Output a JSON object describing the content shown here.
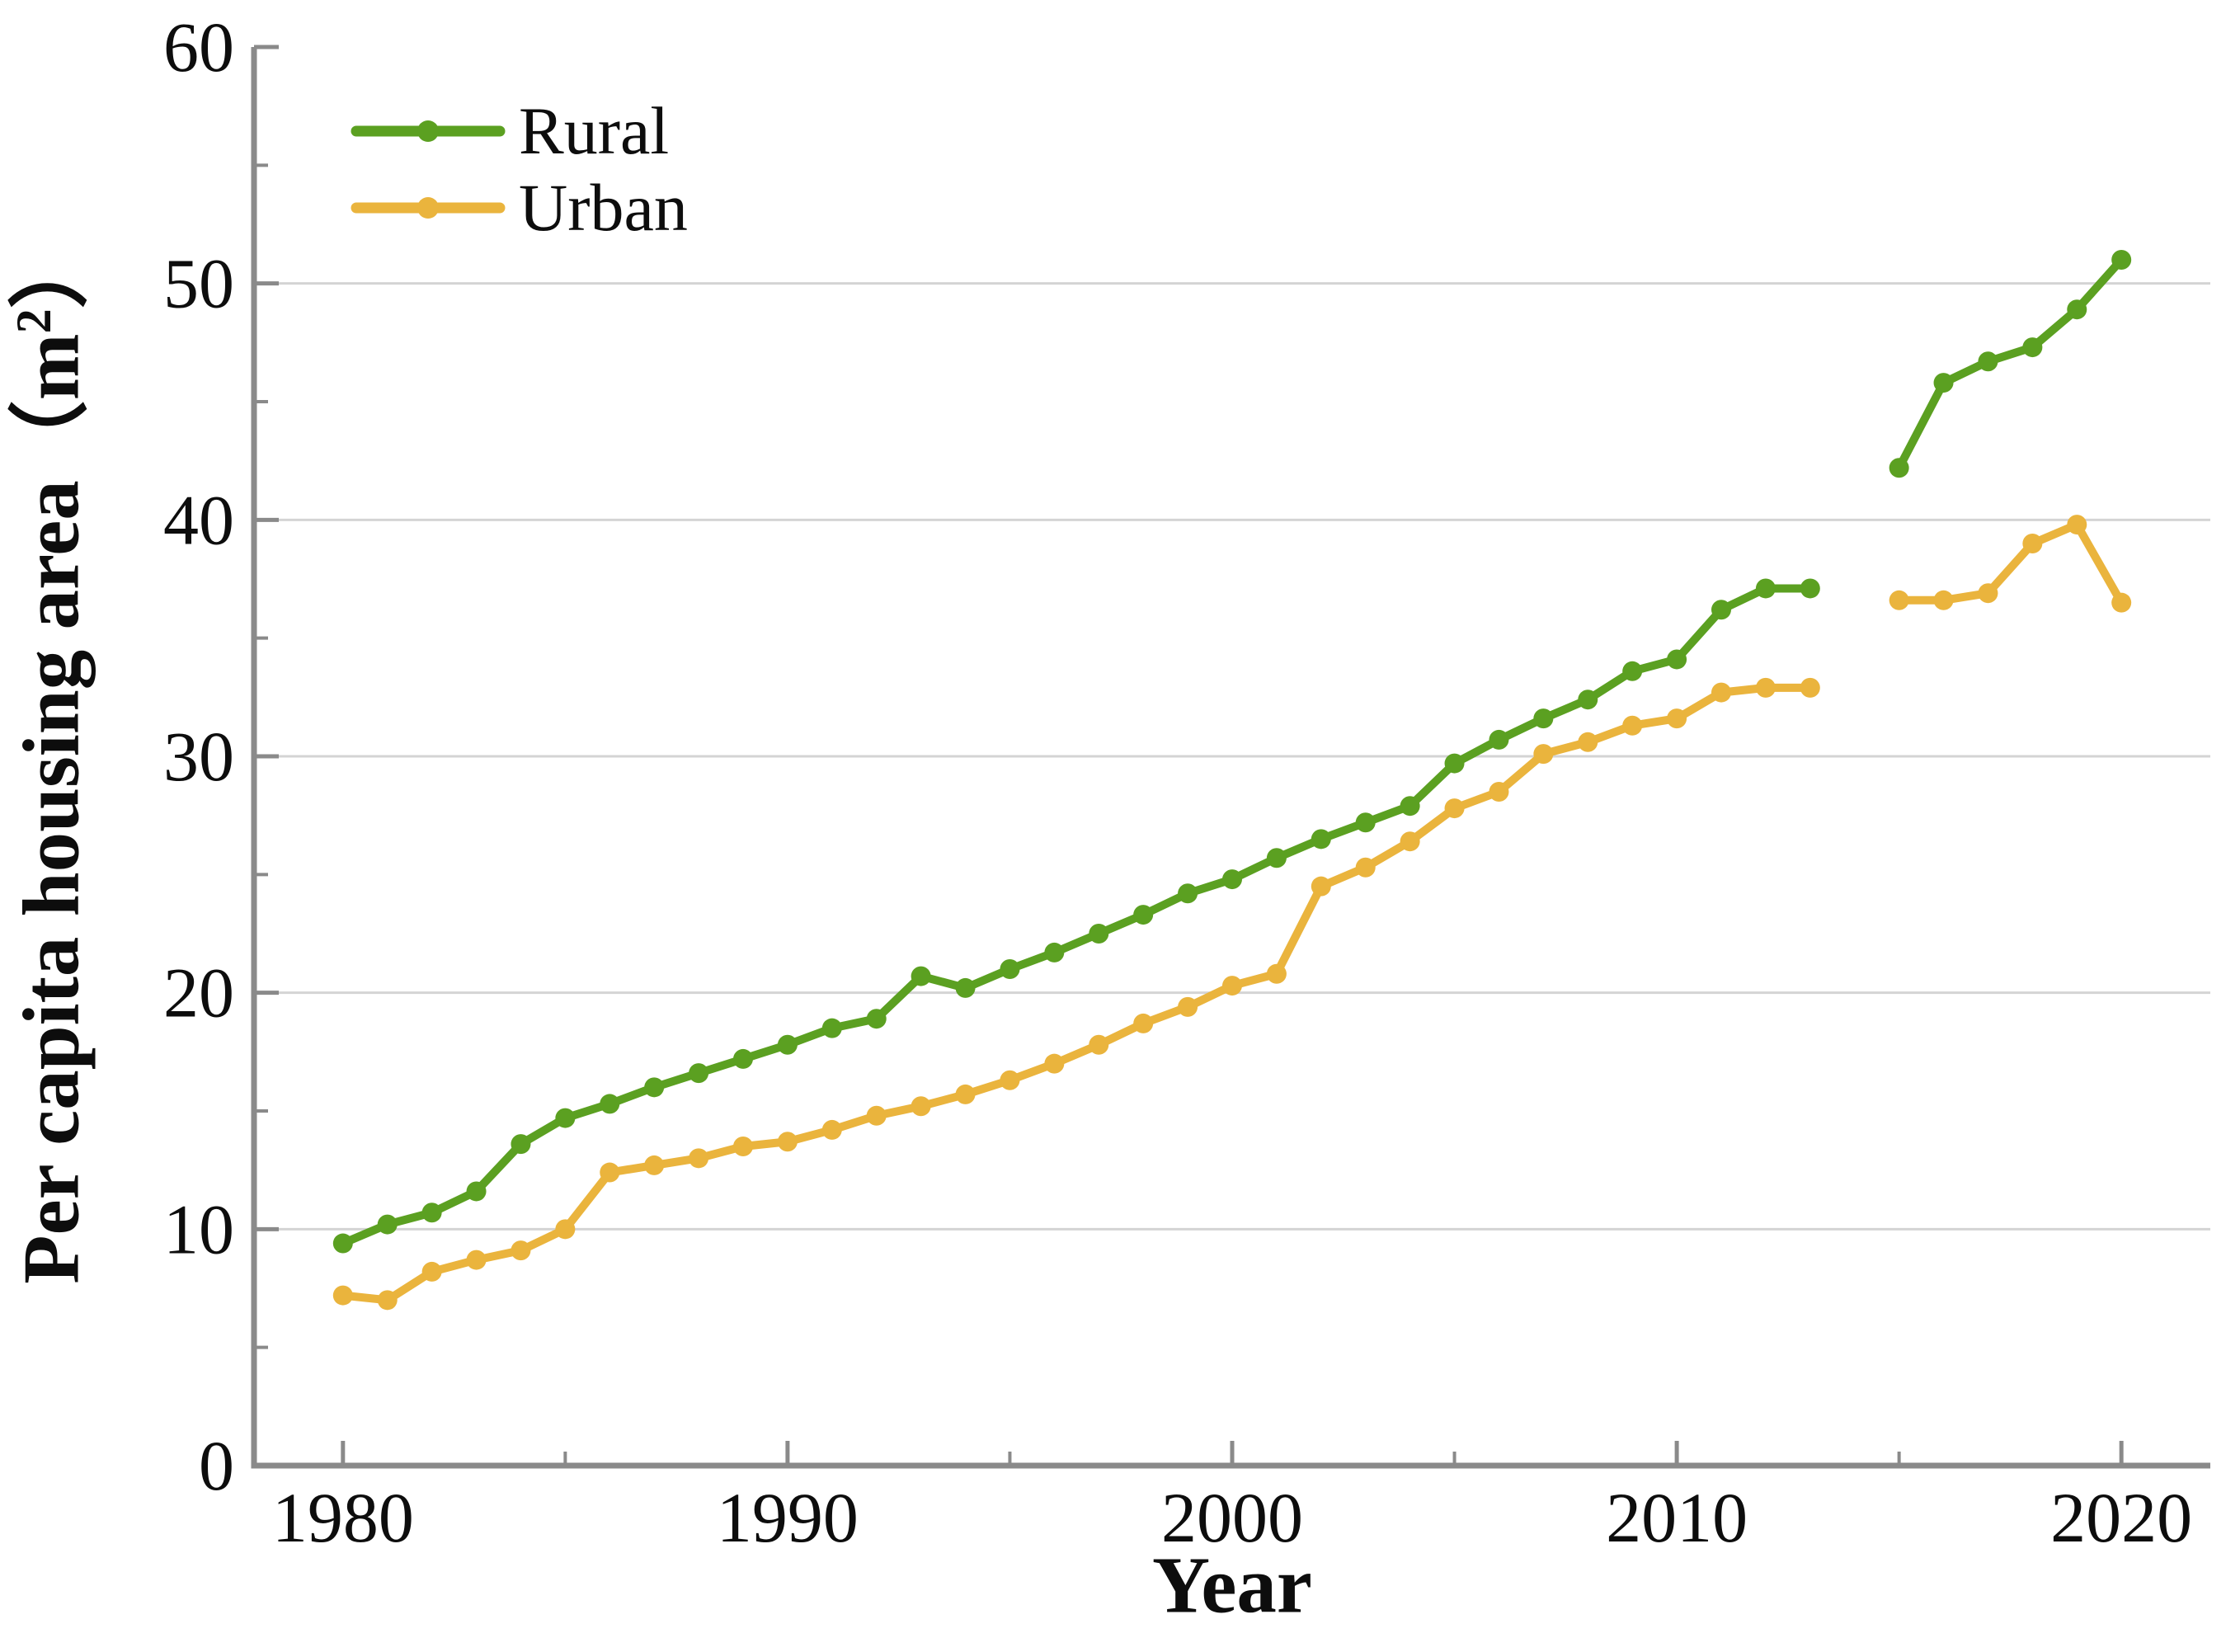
{
  "figure": {
    "x_axis_title": "Year",
    "y_axis_title_prefix": "Per capita housing area（m",
    "y_axis_title_sup": "2",
    "y_axis_title_suffix": "）",
    "y_axis_title_full": "Per capita housing area（m²）"
  },
  "legend": {
    "position": "top-left",
    "items": [
      {
        "label": "Rural",
        "color": "#5ba021"
      },
      {
        "label": "Urban",
        "color": "#eab43d"
      }
    ]
  },
  "chart_data": {
    "type": "line",
    "title": "",
    "xlabel": "Year",
    "ylabel": "Per capita housing area (m2)",
    "xlim": [
      1978,
      2022
    ],
    "ylim": [
      0,
      60
    ],
    "grid": "horizontal",
    "gridlines_y": [
      10,
      20,
      30,
      40,
      50
    ],
    "x_major_ticks": [
      1980,
      1990,
      2000,
      2010,
      2020
    ],
    "x_minor_ticks": [
      1985,
      1995,
      2005,
      2015
    ],
    "y_major_ticks": [
      0,
      10,
      20,
      30,
      40,
      50,
      60
    ],
    "y_minor_ticks": [
      5,
      15,
      25,
      35,
      45,
      55
    ],
    "legend_position": "top-left",
    "note": "no data point for 2014 (gap in both series)",
    "x": [
      1980,
      1981,
      1982,
      1983,
      1984,
      1985,
      1986,
      1987,
      1988,
      1989,
      1990,
      1991,
      1992,
      1993,
      1994,
      1995,
      1996,
      1997,
      1998,
      1999,
      2000,
      2001,
      2002,
      2003,
      2004,
      2005,
      2006,
      2007,
      2008,
      2009,
      2010,
      2011,
      2012,
      2013,
      2014,
      2015,
      2016,
      2017,
      2018,
      2019,
      2020
    ],
    "series": [
      {
        "name": "Rural",
        "color": "#5ba021",
        "values": [
          9.4,
          10.2,
          10.7,
          11.6,
          13.6,
          14.7,
          15.3,
          16.0,
          16.6,
          17.2,
          17.8,
          18.5,
          18.9,
          20.7,
          20.2,
          21.0,
          21.7,
          22.5,
          23.3,
          24.2,
          24.8,
          25.7,
          26.5,
          27.2,
          27.9,
          29.7,
          30.7,
          31.6,
          32.4,
          33.6,
          34.1,
          36.2,
          37.1,
          37.1,
          null,
          42.2,
          45.8,
          46.7,
          47.3,
          48.9,
          51.0
        ]
      },
      {
        "name": "Urban",
        "color": "#eab43d",
        "values": [
          7.2,
          7.0,
          8.2,
          8.7,
          9.1,
          10.0,
          12.4,
          12.7,
          13.0,
          13.5,
          13.7,
          14.2,
          14.8,
          15.2,
          15.7,
          16.3,
          17.0,
          17.8,
          18.7,
          19.4,
          20.3,
          20.8,
          24.5,
          25.3,
          26.4,
          27.8,
          28.5,
          30.1,
          30.6,
          31.3,
          31.6,
          32.7,
          32.9,
          32.9,
          null,
          36.6,
          36.6,
          36.9,
          39.0,
          39.8,
          36.5
        ]
      }
    ]
  },
  "style": {
    "background": "#ffffff",
    "grid_color": "#d4d4d4",
    "axis_color": "#8a8a8a",
    "tick_label_color": "#0d0d0d",
    "tick_label_font_size": 86
  }
}
